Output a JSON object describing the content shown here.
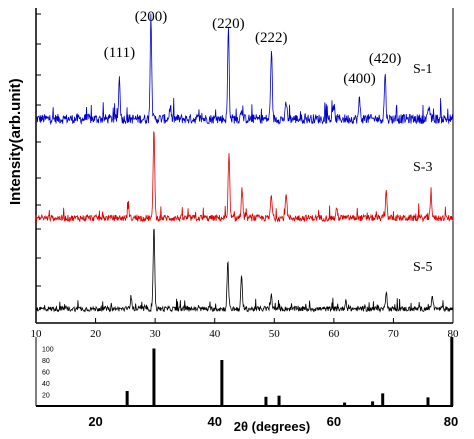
{
  "chart_data": [
    {
      "type": "line",
      "ylabel": "Intensity(arb.unit)",
      "xlim": [
        10,
        80
      ],
      "xticks": [
        10,
        20,
        30,
        40,
        50,
        60,
        70,
        80
      ],
      "peak_labels": [
        {
          "text": "(111)",
          "x": 24
        },
        {
          "text": "(200)",
          "x": 29.3
        },
        {
          "text": "(220)",
          "x": 42.3
        },
        {
          "text": "(222)",
          "x": 49.5
        },
        {
          "text": "(400)",
          "x": 64.3
        },
        {
          "text": "(420)",
          "x": 68.6
        }
      ],
      "series": [
        {
          "name": "S-1",
          "color": "#0000cc",
          "noise": 0.09,
          "peaks": [
            {
              "x": 24.0,
              "h": 0.38
            },
            {
              "x": 29.3,
              "h": 0.95
            },
            {
              "x": 32.5,
              "h": 0.1
            },
            {
              "x": 42.3,
              "h": 0.84
            },
            {
              "x": 44.5,
              "h": 0.1
            },
            {
              "x": 49.5,
              "h": 0.6
            },
            {
              "x": 52.0,
              "h": 0.15
            },
            {
              "x": 60.0,
              "h": 0.12
            },
            {
              "x": 64.3,
              "h": 0.18
            },
            {
              "x": 68.6,
              "h": 0.42
            },
            {
              "x": 76.0,
              "h": 0.12
            }
          ]
        },
        {
          "name": "S-3",
          "color": "#dd0000",
          "noise": 0.07,
          "peaks": [
            {
              "x": 25.5,
              "h": 0.12
            },
            {
              "x": 29.8,
              "h": 1.0
            },
            {
              "x": 42.4,
              "h": 0.68
            },
            {
              "x": 44.6,
              "h": 0.32
            },
            {
              "x": 49.5,
              "h": 0.25
            },
            {
              "x": 52.0,
              "h": 0.28
            },
            {
              "x": 60.5,
              "h": 0.1
            },
            {
              "x": 68.8,
              "h": 0.3
            },
            {
              "x": 76.3,
              "h": 0.28
            }
          ]
        },
        {
          "name": "S-5",
          "color": "#000000",
          "noise": 0.06,
          "peaks": [
            {
              "x": 26.0,
              "h": 0.14
            },
            {
              "x": 29.8,
              "h": 1.0
            },
            {
              "x": 42.2,
              "h": 0.55
            },
            {
              "x": 44.5,
              "h": 0.38
            },
            {
              "x": 49.5,
              "h": 0.15
            },
            {
              "x": 62.0,
              "h": 0.1
            },
            {
              "x": 68.8,
              "h": 0.22
            },
            {
              "x": 76.5,
              "h": 0.15
            }
          ]
        }
      ]
    },
    {
      "type": "bar",
      "xlabel": "2θ (degrees)",
      "xlim": [
        10,
        80
      ],
      "xticks": [
        20,
        40,
        60,
        80
      ],
      "ylim": [
        0,
        120
      ],
      "yticks": [
        20,
        40,
        60,
        80,
        100
      ],
      "bars": [
        {
          "x": 25.3,
          "v": 26
        },
        {
          "x": 29.8,
          "v": 100
        },
        {
          "x": 41.2,
          "v": 80
        },
        {
          "x": 48.6,
          "v": 16
        },
        {
          "x": 50.8,
          "v": 18
        },
        {
          "x": 61.8,
          "v": 6
        },
        {
          "x": 66.5,
          "v": 8
        },
        {
          "x": 68.2,
          "v": 22
        },
        {
          "x": 75.8,
          "v": 15
        },
        {
          "x": 79.8,
          "v": 120
        }
      ]
    }
  ]
}
